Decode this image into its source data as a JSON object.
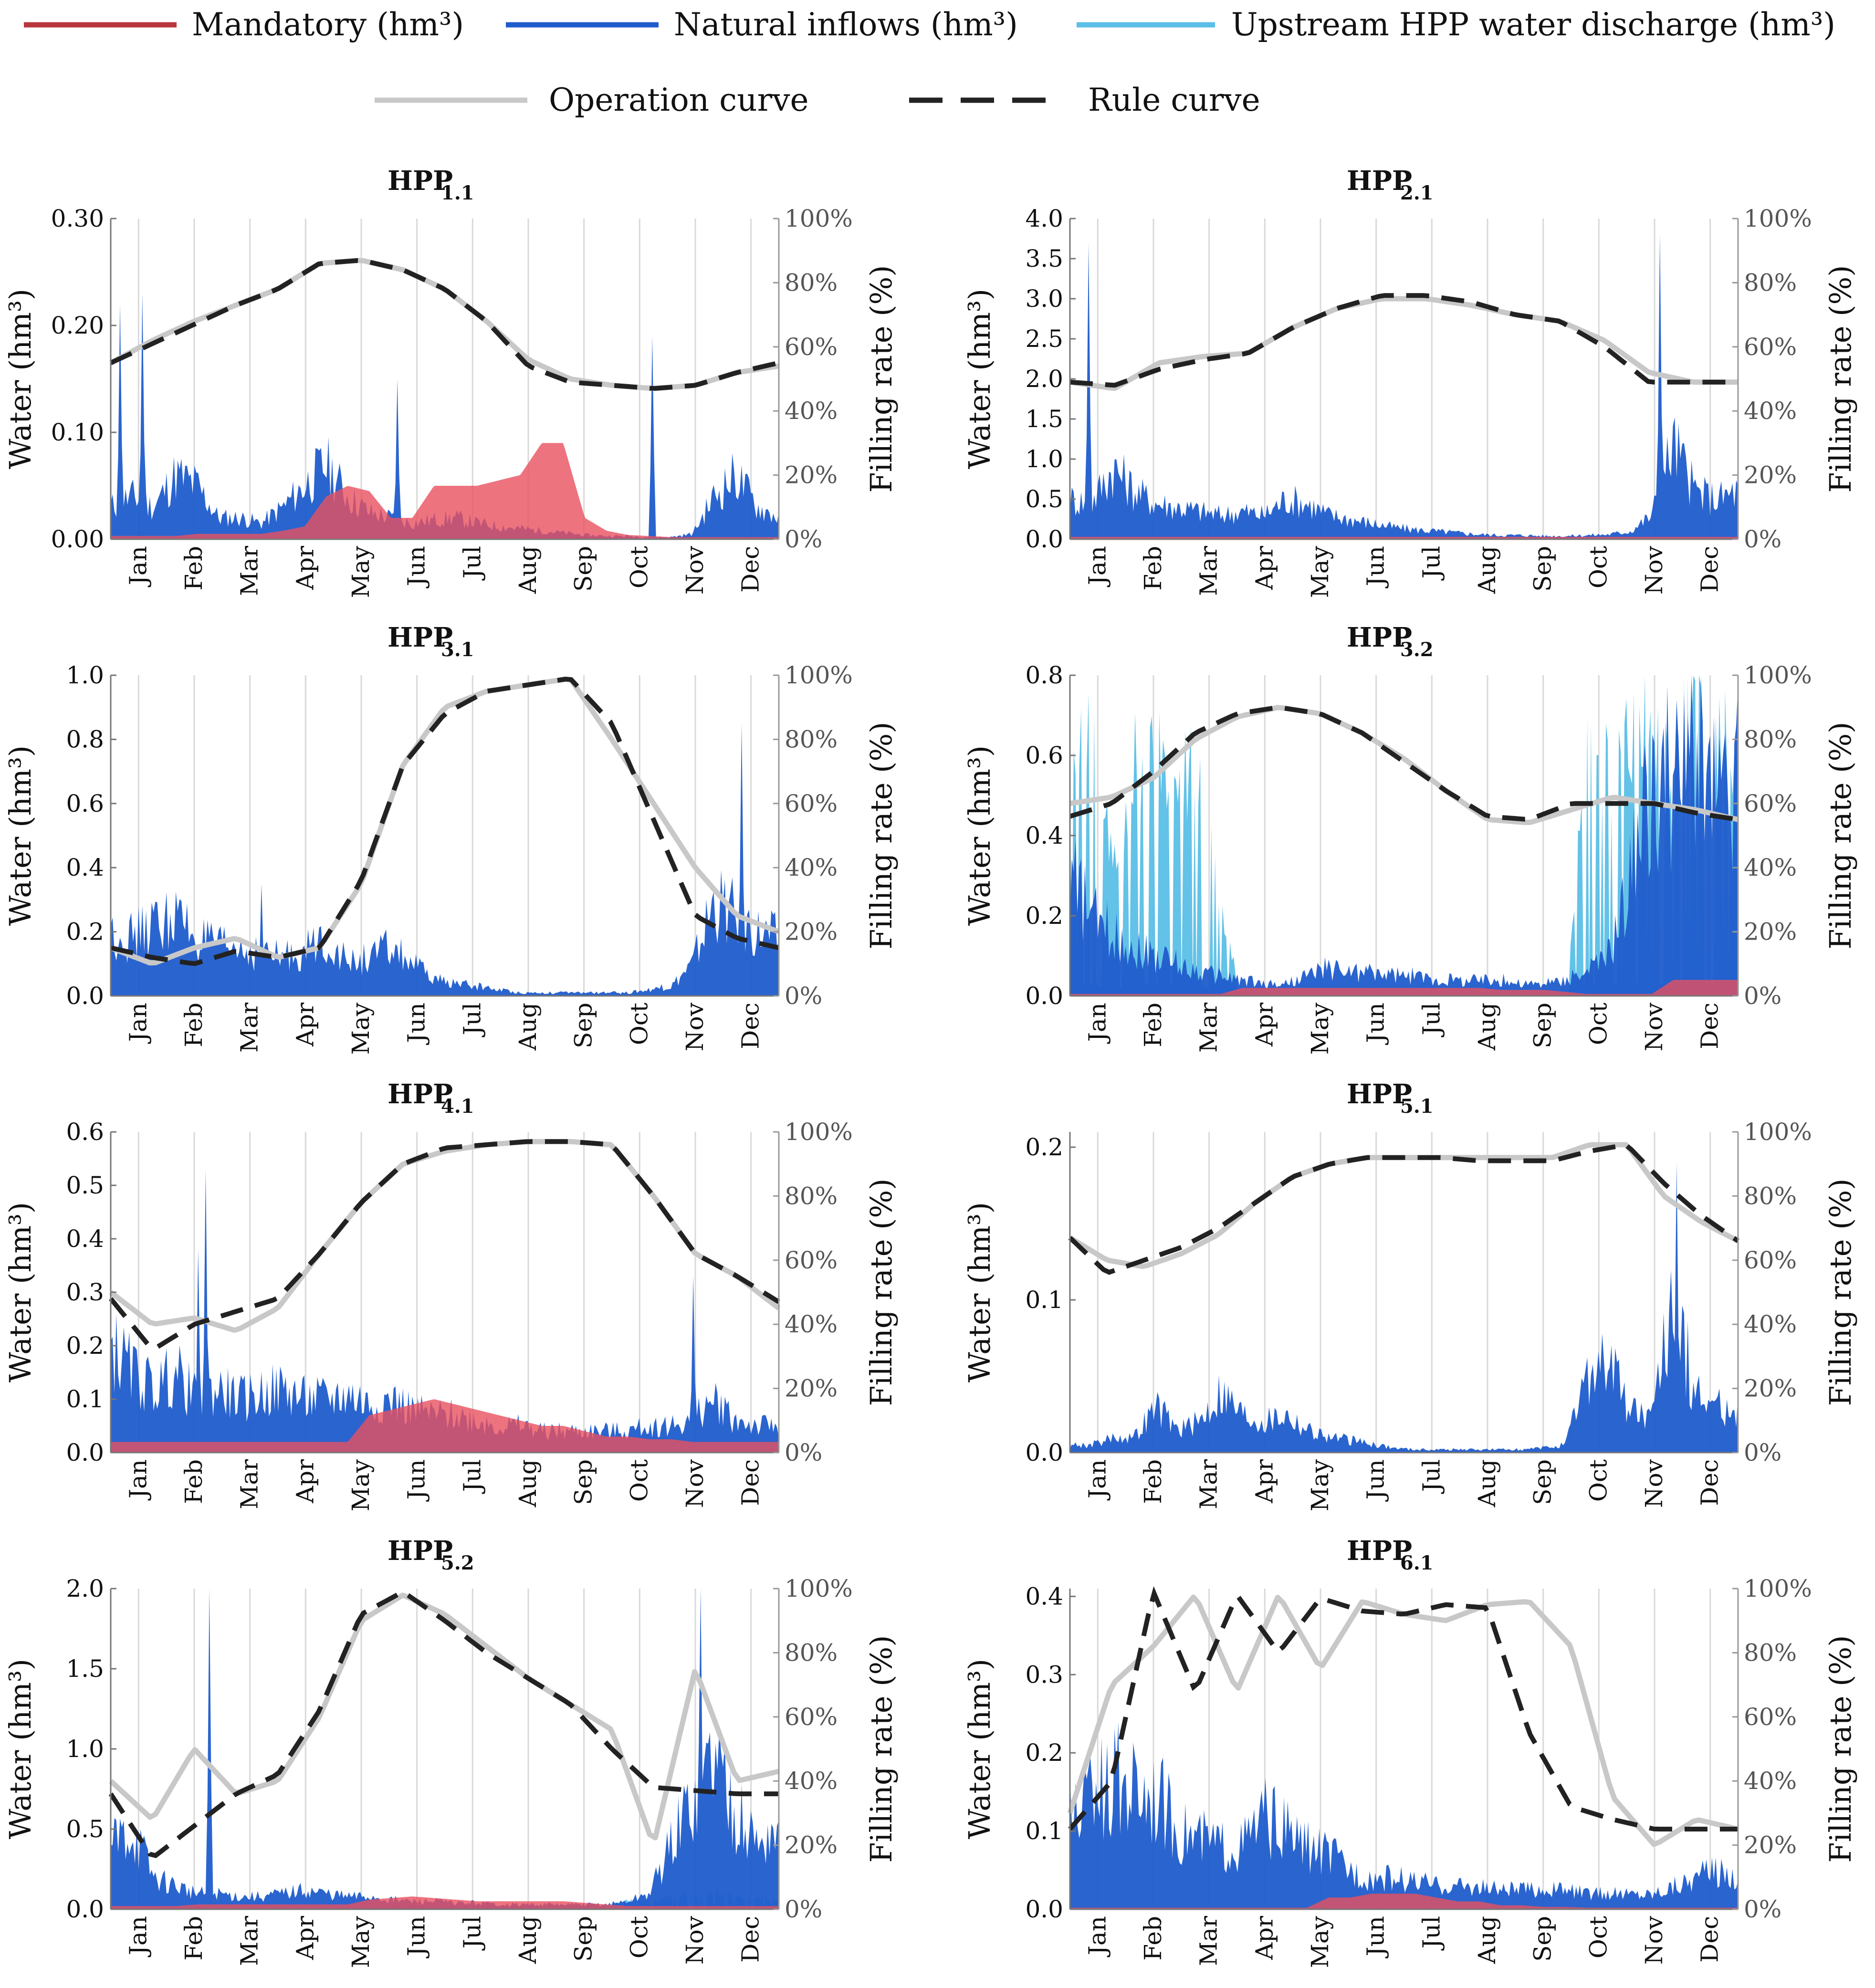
{
  "legend": {
    "items": [
      {
        "key": "mandatory",
        "label": "Mandatory (hm³)",
        "color": "#b8363c",
        "style": "solid"
      },
      {
        "key": "natural",
        "label": "Natural inflows (hm³)",
        "color": "#1f5ccc",
        "style": "solid"
      },
      {
        "key": "upstream",
        "label": "Upstream HPP water discharge (hm³)",
        "color": "#5bbfe6",
        "style": "solid"
      },
      {
        "key": "operation",
        "label": "Operation curve",
        "color": "#c8c8c8",
        "style": "solid"
      },
      {
        "key": "rule",
        "label": "Rule curve",
        "color": "#222222",
        "style": "dashed"
      }
    ]
  },
  "axes_labels": {
    "left": "Water (hm³)",
    "right": "Filling rate (%)"
  },
  "months": [
    "Jan",
    "Feb",
    "Mar",
    "Apr",
    "May",
    "Jun",
    "Jul",
    "Aug",
    "Sep",
    "Oct",
    "Nov",
    "Dec"
  ],
  "right_ticks": [
    "0%",
    "20%",
    "40%",
    "60%",
    "80%",
    "100%"
  ],
  "chart_data": [
    {
      "type": "area",
      "title": "HPP",
      "subscript": "1.1",
      "ylabel": "Water (hm³)",
      "y2label": "Filling rate (%)",
      "ylim": [
        0,
        0.3
      ],
      "yticks": [
        "0.00",
        "0.10",
        "0.20",
        "0.30"
      ],
      "ytick_values": [
        0,
        0.1,
        0.2,
        0.3
      ],
      "natural": [
        0.03,
        0.04,
        0.03,
        0.06,
        0.05,
        0.02,
        0.02,
        0.015,
        0.03,
        0.05,
        0.07,
        0.04,
        0.025,
        0.02,
        0.015,
        0.018,
        0.02,
        0.015,
        0.012,
        0.01,
        0.008,
        0.006,
        0.004,
        0.003,
        0.003,
        0.002,
        0.002,
        0.005,
        0.04,
        0.06,
        0.03,
        0.02
      ],
      "natural_peaks": [
        [
          0.06,
          0.22
        ],
        [
          0.2,
          0.23
        ],
        [
          1.8,
          0.15
        ],
        [
          3.4,
          0.19
        ]
      ],
      "mandatory": [
        0.003,
        0.003,
        0.003,
        0.003,
        0.005,
        0.005,
        0.005,
        0.005,
        0.008,
        0.012,
        0.04,
        0.05,
        0.045,
        0.02,
        0.02,
        0.05,
        0.05,
        0.05,
        0.055,
        0.06,
        0.09,
        0.09,
        0.02,
        0.008,
        0.004,
        0.003,
        0.002,
        0.002,
        0.002,
        0.002,
        0.002,
        0.002
      ],
      "upstream": [],
      "operation_pct": [
        55,
        62,
        68,
        73,
        78,
        86,
        87,
        84,
        78,
        68,
        56,
        50,
        48,
        47,
        48,
        52,
        54
      ],
      "rule_pct": [
        55,
        61,
        67,
        73,
        78,
        86,
        87,
        84,
        78,
        68,
        54,
        49,
        48,
        47,
        48,
        52,
        55
      ]
    },
    {
      "type": "area",
      "title": "HPP",
      "subscript": "2.1",
      "ylabel": "Water (hm³)",
      "y2label": "Filling rate (%)",
      "ylim": [
        0,
        4.0
      ],
      "yticks": [
        "0.0",
        "0.5",
        "1.0",
        "1.5",
        "2.0",
        "2.5",
        "3.0",
        "3.5",
        "4.0"
      ],
      "ytick_values": [
        0,
        0.5,
        1,
        1.5,
        2,
        2.5,
        3,
        3.5,
        4
      ],
      "natural": [
        0.5,
        0.45,
        0.9,
        0.6,
        0.45,
        0.4,
        0.35,
        0.3,
        0.35,
        0.3,
        0.5,
        0.45,
        0.3,
        0.25,
        0.2,
        0.15,
        0.12,
        0.1,
        0.08,
        0.06,
        0.05,
        0.05,
        0.04,
        0.04,
        0.05,
        0.06,
        0.1,
        0.3,
        1.2,
        0.6,
        0.5,
        0.6
      ],
      "natural_peaks": [
        [
          0.12,
          3.7
        ],
        [
          3.7,
          3.8
        ]
      ],
      "mandatory": [
        0.03,
        0.03,
        0.03,
        0.03,
        0.03,
        0.03,
        0.03,
        0.03,
        0.03,
        0.03,
        0.03,
        0.03,
        0.03,
        0.03,
        0.03,
        0.03,
        0.03,
        0.03,
        0.03,
        0.03,
        0.03,
        0.03,
        0.03,
        0.03,
        0.03,
        0.03,
        0.03,
        0.03,
        0.03,
        0.03,
        0.03,
        0.03
      ],
      "upstream": [],
      "operation_pct": [
        49,
        47,
        55,
        57,
        58,
        66,
        72,
        75,
        75,
        73,
        70,
        68,
        62,
        52,
        49,
        49
      ],
      "rule_pct": [
        49,
        48,
        53,
        56,
        58,
        66,
        72,
        76,
        76,
        74,
        70,
        68,
        60,
        49,
        49,
        49
      ]
    },
    {
      "type": "area",
      "title": "HPP",
      "subscript": "3.1",
      "ylabel": "Water (hm³)",
      "y2label": "Filling rate (%)",
      "ylim": [
        0,
        1.0
      ],
      "yticks": [
        "0.0",
        "0.2",
        "0.4",
        "0.6",
        "0.8",
        "1.0"
      ],
      "ytick_values": [
        0,
        0.2,
        0.4,
        0.6,
        0.8,
        1.0
      ],
      "natural": [
        0.2,
        0.18,
        0.22,
        0.25,
        0.18,
        0.15,
        0.15,
        0.13,
        0.12,
        0.14,
        0.18,
        0.1,
        0.12,
        0.15,
        0.1,
        0.05,
        0.04,
        0.03,
        0.02,
        0.01,
        0.01,
        0.01,
        0.01,
        0.01,
        0.01,
        0.02,
        0.03,
        0.1,
        0.3,
        0.25,
        0.2,
        0.18
      ],
      "natural_peaks": [
        [
          0.95,
          0.35
        ],
        [
          3.95,
          0.85
        ]
      ],
      "mandatory": [],
      "upstream": [],
      "operation_pct": [
        15,
        10,
        15,
        18,
        12,
        15,
        35,
        72,
        90,
        95,
        97,
        99,
        80,
        60,
        40,
        25,
        20
      ],
      "rule_pct": [
        15,
        12,
        10,
        14,
        12,
        15,
        36,
        72,
        88,
        95,
        97,
        99,
        85,
        55,
        25,
        18,
        15
      ]
    },
    {
      "type": "area",
      "title": "HPP",
      "subscript": "3.2",
      "ylabel": "Water (hm³)",
      "y2label": "Filling rate (%)",
      "ylim": [
        0,
        0.8
      ],
      "yticks": [
        "0.0",
        "0.2",
        "0.4",
        "0.6",
        "0.8"
      ],
      "ytick_values": [
        0,
        0.2,
        0.4,
        0.6,
        0.8
      ],
      "natural": [
        0.3,
        0.2,
        0.15,
        0.12,
        0.1,
        0.08,
        0.06,
        0.05,
        0.04,
        0.03,
        0.03,
        0.05,
        0.07,
        0.06,
        0.06,
        0.05,
        0.05,
        0.04,
        0.04,
        0.04,
        0.04,
        0.03,
        0.03,
        0.04,
        0.06,
        0.1,
        0.3,
        0.5,
        0.55,
        0.6,
        0.5,
        0.5
      ],
      "natural_peaks": [
        [
          4.55,
          0.78
        ]
      ],
      "mandatory": [
        0.005,
        0.005,
        0.005,
        0.005,
        0.005,
        0.005,
        0.005,
        0.005,
        0.02,
        0.02,
        0.02,
        0.02,
        0.02,
        0.02,
        0.02,
        0.02,
        0.02,
        0.02,
        0.02,
        0.02,
        0.015,
        0.015,
        0.015,
        0.01,
        0.005,
        0.005,
        0.005,
        0.005,
        0.04,
        0.04,
        0.04,
        0.04
      ],
      "upstream": [
        0.5,
        0.6,
        0.3,
        0.55,
        0.6,
        0.55,
        0.5,
        0.2,
        0,
        0,
        0,
        0,
        0,
        0,
        0,
        0,
        0,
        0,
        0,
        0,
        0,
        0,
        0,
        0,
        0.6,
        0.55,
        0.6,
        0.65,
        0.55,
        0.7,
        0.6,
        0.6
      ],
      "operation_pct": [
        60,
        62,
        68,
        80,
        87,
        90,
        88,
        82,
        74,
        64,
        55,
        54,
        58,
        62,
        60,
        58,
        55
      ],
      "rule_pct": [
        56,
        60,
        70,
        82,
        88,
        90,
        88,
        82,
        73,
        64,
        56,
        55,
        60,
        60,
        60,
        57,
        55
      ]
    },
    {
      "type": "area",
      "title": "HPP",
      "subscript": "4.1",
      "ylabel": "Water (hm³)",
      "y2label": "Filling rate (%)",
      "ylim": [
        0,
        0.6
      ],
      "yticks": [
        "0.0",
        "0.1",
        "0.2",
        "0.3",
        "0.4",
        "0.5",
        "0.6"
      ],
      "ytick_values": [
        0,
        0.1,
        0.2,
        0.3,
        0.4,
        0.5,
        0.6
      ],
      "natural": [
        0.2,
        0.15,
        0.12,
        0.15,
        0.1,
        0.12,
        0.1,
        0.11,
        0.12,
        0.1,
        0.1,
        0.11,
        0.09,
        0.1,
        0.08,
        0.07,
        0.07,
        0.06,
        0.05,
        0.05,
        0.04,
        0.04,
        0.04,
        0.04,
        0.04,
        0.05,
        0.05,
        0.06,
        0.1,
        0.06,
        0.05,
        0.05
      ],
      "natural_peaks": [
        [
          0.6,
          0.53
        ],
        [
          0.55,
          0.38
        ],
        [
          3.65,
          0.33
        ]
      ],
      "mandatory": [
        0.02,
        0.02,
        0.02,
        0.02,
        0.02,
        0.02,
        0.02,
        0.02,
        0.02,
        0.02,
        0.02,
        0.02,
        0.07,
        0.08,
        0.09,
        0.1,
        0.09,
        0.08,
        0.07,
        0.06,
        0.05,
        0.05,
        0.04,
        0.03,
        0.03,
        0.025,
        0.025,
        0.02,
        0.02,
        0.02,
        0.02,
        0.02
      ],
      "upstream": [],
      "operation_pct": [
        50,
        40,
        42,
        38,
        45,
        62,
        78,
        90,
        94,
        96,
        97,
        97,
        96,
        80,
        62,
        55,
        45
      ],
      "rule_pct": [
        48,
        32,
        40,
        44,
        48,
        62,
        78,
        90,
        95,
        96,
        97,
        97,
        96,
        80,
        62,
        55,
        47
      ]
    },
    {
      "type": "area",
      "title": "HPP",
      "subscript": "5.1",
      "ylabel": "Water (hm³)",
      "y2label": "Filling rate (%)",
      "ylim": [
        0,
        0.21
      ],
      "yticks": [
        "0.0",
        "0.1",
        "0.2"
      ],
      "ytick_values": [
        0,
        0.1,
        0.2
      ],
      "natural": [
        0.005,
        0.005,
        0.01,
        0.01,
        0.03,
        0.015,
        0.02,
        0.04,
        0.025,
        0.02,
        0.025,
        0.015,
        0.01,
        0.008,
        0.006,
        0.003,
        0.002,
        0.002,
        0.002,
        0.002,
        0.002,
        0.002,
        0.003,
        0.005,
        0.05,
        0.06,
        0.03,
        0.02,
        0.1,
        0.04,
        0.03,
        0.03
      ],
      "natural_peaks": [
        [
          3.8,
          0.19
        ]
      ],
      "mandatory": [],
      "upstream": [],
      "operation_pct": [
        67,
        60,
        58,
        62,
        68,
        78,
        86,
        90,
        92,
        92,
        92,
        92,
        92,
        92,
        96,
        96,
        80,
        72,
        66
      ],
      "rule_pct": [
        67,
        56,
        60,
        64,
        70,
        78,
        86,
        90,
        92,
        92,
        92,
        91,
        91,
        91,
        94,
        96,
        84,
        74,
        66
      ]
    },
    {
      "type": "area",
      "title": "HPP",
      "subscript": "5.2",
      "ylabel": "Water (hm³)",
      "y2label": "Filling rate (%)",
      "ylim": [
        0,
        2.0
      ],
      "yticks": [
        "0.0",
        "0.5",
        "1.0",
        "1.5",
        "2.0"
      ],
      "ytick_values": [
        0,
        0.5,
        1,
        1.5,
        2
      ],
      "natural": [
        0.4,
        0.5,
        0.2,
        0.15,
        0.1,
        0.1,
        0.08,
        0.08,
        0.1,
        0.12,
        0.1,
        0.08,
        0.08,
        0.06,
        0.05,
        0.05,
        0.04,
        0.04,
        0.03,
        0.03,
        0.03,
        0.03,
        0.03,
        0.03,
        0.05,
        0.1,
        0.4,
        0.7,
        1.0,
        0.6,
        0.4,
        0.5
      ],
      "natural_peaks": [
        [
          0.62,
          2.0
        ],
        [
          3.7,
          2.0
        ]
      ],
      "mandatory": [
        0.02,
        0.02,
        0.02,
        0.02,
        0.03,
        0.03,
        0.03,
        0.03,
        0.03,
        0.03,
        0.03,
        0.03,
        0.06,
        0.07,
        0.08,
        0.07,
        0.06,
        0.05,
        0.05,
        0.05,
        0.05,
        0.05,
        0.04,
        0.03,
        0.02,
        0.02,
        0.02,
        0.02,
        0.02,
        0.02,
        0.02,
        0.02
      ],
      "upstream": [
        0.02,
        0.02,
        0.02,
        0.02,
        0.02,
        0.02,
        0.02,
        0.02,
        0.02,
        0.02,
        0.02,
        0.02,
        0.02,
        0.02,
        0.02,
        0.02,
        0.02,
        0.02,
        0.02,
        0.02,
        0.02,
        0.02,
        0.02,
        0.02,
        0.05,
        0.05,
        0.08,
        0.1,
        0.1,
        0.08,
        0.06,
        0.06
      ],
      "operation_pct": [
        40,
        28,
        50,
        36,
        40,
        60,
        90,
        98,
        92,
        82,
        72,
        64,
        56,
        20,
        75,
        40,
        43
      ],
      "rule_pct": [
        36,
        16,
        26,
        36,
        42,
        62,
        92,
        99,
        90,
        80,
        72,
        64,
        50,
        38,
        37,
        36,
        36
      ]
    },
    {
      "type": "area",
      "title": "HPP",
      "subscript": "6.1",
      "ylabel": "Water (hm³)",
      "y2label": "Filling rate (%)",
      "ylim": [
        0,
        0.41
      ],
      "yticks": [
        "0.0",
        "0.1",
        "0.2",
        "0.3",
        "0.4"
      ],
      "ytick_values": [
        0,
        0.1,
        0.2,
        0.3,
        0.4
      ],
      "natural": [
        0.12,
        0.15,
        0.17,
        0.16,
        0.15,
        0.1,
        0.09,
        0.08,
        0.08,
        0.12,
        0.1,
        0.08,
        0.07,
        0.05,
        0.04,
        0.04,
        0.035,
        0.03,
        0.03,
        0.028,
        0.025,
        0.025,
        0.025,
        0.025,
        0.02,
        0.02,
        0.02,
        0.02,
        0.03,
        0.04,
        0.05,
        0.04
      ],
      "natural_peaks": [
        [
          0.3,
          0.24
        ],
        [
          0.2,
          0.22
        ]
      ],
      "mandatory": [
        0.002,
        0.002,
        0.002,
        0.002,
        0.002,
        0.002,
        0.002,
        0.002,
        0.002,
        0.002,
        0.002,
        0.002,
        0.015,
        0.015,
        0.02,
        0.02,
        0.02,
        0.015,
        0.01,
        0.01,
        0.005,
        0.005,
        0.003,
        0.003,
        0.002,
        0.002,
        0.002,
        0.002,
        0.002,
        0.002,
        0.002,
        0.002
      ],
      "upstream": [],
      "operation_pct": [
        30,
        70,
        82,
        98,
        68,
        98,
        75,
        96,
        92,
        90,
        95,
        96,
        82,
        35,
        20,
        28,
        25
      ],
      "rule_pct": [
        25,
        40,
        99,
        68,
        98,
        80,
        97,
        93,
        92,
        95,
        94,
        55,
        32,
        28,
        25,
        25,
        25
      ]
    }
  ]
}
